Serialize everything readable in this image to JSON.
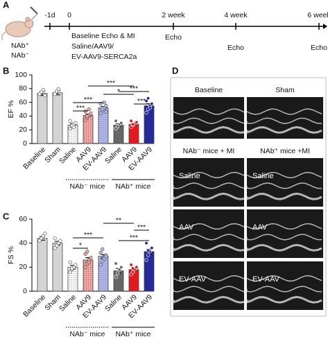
{
  "panels": [
    "A",
    "B",
    "C",
    "D"
  ],
  "timeline": {
    "groups": [
      "NAb⁺",
      "NAb⁻"
    ],
    "times": [
      "-1d",
      "0",
      "2 week",
      "4 week",
      "6 week"
    ],
    "procedure": [
      "Baseline Echo & MI",
      "Saline/AAV9/",
      "EV-AAV9-SERCA2a"
    ],
    "echo": [
      "Echo",
      "Echo",
      "Echo"
    ]
  },
  "chart_data": [
    {
      "type": "bar",
      "ylabel": "EF %",
      "categories": [
        "Baseline",
        "Sham",
        "Saline",
        "AAV9",
        "EV-AAV9",
        "Saline",
        "AAV9",
        "EV-AAV9"
      ],
      "values": [
        73,
        74,
        27,
        41,
        52,
        27,
        28,
        55
      ],
      "errors": [
        3,
        3,
        2,
        2,
        2,
        2,
        1.5,
        3
      ],
      "points": [
        [
          72,
          75,
          78,
          70
        ],
        [
          72,
          76,
          79
        ],
        [
          22,
          25,
          28,
          30,
          33,
          26,
          24
        ],
        [
          34,
          38,
          41,
          44,
          47,
          40,
          50
        ],
        [
          44,
          48,
          52,
          55,
          58,
          50,
          60,
          46
        ],
        [
          22,
          25,
          28,
          30,
          33
        ],
        [
          24,
          27,
          29,
          31,
          33,
          28
        ],
        [
          45,
          50,
          55,
          58,
          62,
          66,
          52
        ]
      ],
      "colors": [
        "#d4d4d4",
        "#d4d4d4",
        "#ffffff",
        "#f6a7a3",
        "#b3bdf0",
        "#666666",
        "#e3191c",
        "#25299a"
      ],
      "dotted": [
        false,
        false,
        true,
        true,
        true,
        false,
        false,
        false
      ],
      "ylim": [
        0,
        100
      ],
      "yticks": [
        0,
        20,
        40,
        60,
        80,
        100
      ],
      "groups": [
        {
          "label": "NAb⁻ mice",
          "from": 2,
          "to": 4,
          "line": "dotted"
        },
        {
          "label": "NAb⁺ mice",
          "from": 5,
          "to": 7,
          "line": "solid"
        }
      ],
      "brackets": [
        {
          "from": 3,
          "to": 6,
          "label": "***"
        },
        {
          "from": 4,
          "to": 6,
          "label": "*"
        },
        {
          "from": 5,
          "to": 7,
          "label": "***"
        },
        {
          "from": 2,
          "to": 4,
          "label": "***"
        },
        {
          "from": 2,
          "to": 3,
          "label": "***"
        },
        {
          "from": 6,
          "to": 7,
          "label": "***"
        }
      ]
    },
    {
      "type": "bar",
      "ylabel": "FS %",
      "categories": [
        "Baseline",
        "Sham",
        "Saline",
        "AAV9",
        "EV-AAV9",
        "Saline",
        "AAV9",
        "EV-AAV9"
      ],
      "values": [
        44,
        40,
        20,
        26,
        29,
        17,
        18,
        33
      ],
      "errors": [
        1.5,
        1.5,
        1.5,
        2,
        1.5,
        2,
        1.5,
        2
      ],
      "points": [
        [
          42,
          44,
          46,
          48
        ],
        [
          36,
          38,
          40,
          42,
          44
        ],
        [
          16,
          18,
          20,
          22,
          24,
          19
        ],
        [
          20,
          23,
          26,
          28,
          31,
          33,
          24
        ],
        [
          22,
          25,
          28,
          30,
          32,
          35,
          27,
          29
        ],
        [
          12,
          15,
          18,
          20,
          23
        ],
        [
          14,
          16,
          18,
          20,
          22,
          19
        ],
        [
          26,
          30,
          33,
          36,
          40,
          34
        ]
      ],
      "colors": [
        "#d4d4d4",
        "#d4d4d4",
        "#ffffff",
        "#f6a7a3",
        "#b3bdf0",
        "#666666",
        "#e3191c",
        "#25299a"
      ],
      "dotted": [
        false,
        false,
        true,
        true,
        true,
        false,
        false,
        false
      ],
      "ylim": [
        0,
        60
      ],
      "yticks": [
        0,
        20,
        40,
        60
      ],
      "groups": [
        {
          "label": "NAb⁻ mice",
          "from": 2,
          "to": 4,
          "line": "dotted"
        },
        {
          "label": "NAb⁺ mice",
          "from": 5,
          "to": 7,
          "line": "solid"
        }
      ],
      "brackets": [
        {
          "from": 4,
          "to": 6,
          "label": "**"
        },
        {
          "from": 6,
          "to": 7,
          "label": "***"
        },
        {
          "from": 2,
          "to": 4,
          "label": "***"
        },
        {
          "from": 5,
          "to": 7,
          "label": "***"
        },
        {
          "from": 2,
          "to": 3,
          "label": "*"
        }
      ]
    }
  ],
  "echo_panel": {
    "top_labels": [
      "Baseline",
      "Sham"
    ],
    "mi_labels": [
      "NAb⁻ mice + MI",
      "NAb⁺ mice +MI"
    ],
    "rows": [
      [
        "Saline",
        "Saline"
      ],
      [
        "AAV",
        "AAV"
      ],
      [
        "EV-AAV",
        "EV-AAV"
      ]
    ]
  }
}
